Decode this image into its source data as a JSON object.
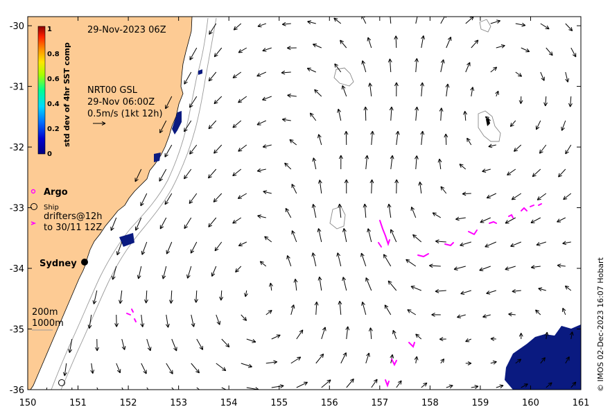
{
  "map": {
    "timestamp": "29-Nov-2023 06Z",
    "x_ticks": [
      "150",
      "151",
      "152",
      "153",
      "154",
      "155",
      "156",
      "157",
      "158",
      "159",
      "160",
      "161"
    ],
    "y_ticks": [
      "-30",
      "-31",
      "-32",
      "-33",
      "-34",
      "-35",
      "-36"
    ],
    "lon_range": [
      150,
      161
    ],
    "lat_range": [
      -36,
      -29.85
    ],
    "city_label": "Sydney",
    "credit": "© IMOS 02-Dec-2023 16:07 Hobart"
  },
  "colorbar": {
    "label": "std dev of 4hr SST comp",
    "ticks": [
      "1",
      "0.8",
      "0.6",
      "0.4",
      "0.2",
      "0"
    ],
    "colors": [
      "#8b0000",
      "#ff2000",
      "#ff9000",
      "#ffe600",
      "#a8ff00",
      "#00ff80",
      "#00ffff",
      "#0070ff",
      "#0000c8",
      "#000080"
    ]
  },
  "current_info": {
    "line1": "NRT00 GSL",
    "line2": "29-Nov 06:00Z",
    "line3": "0.5m/s (1kt 12h)"
  },
  "legend": {
    "argo": "Argo",
    "ship": "Ship",
    "drifters_line1": "drifters@12h",
    "drifters_line2": "to 30/11 12Z",
    "depth_200": "200m",
    "depth_1000": "1000m"
  },
  "colors": {
    "land": "#fdcb94",
    "drifter": "#ff00ff",
    "sst_patch": "#0a1a80",
    "contour": "#888888"
  }
}
